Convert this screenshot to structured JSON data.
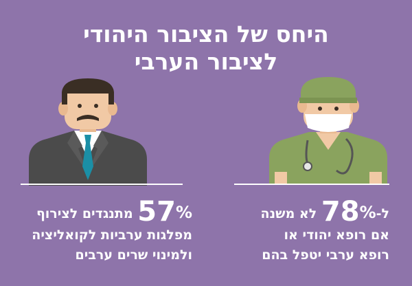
{
  "title": {
    "line1": "היחס של הציבור היהודי",
    "line2": "לציבור הערבי"
  },
  "left_stat": {
    "value": "57",
    "percent": "%",
    "line1_rest": "מתנגדים לצירוף",
    "line2": "מפלגות ערביות לקואליציה",
    "line3": "ולמינוי שרים ערבים"
  },
  "right_stat": {
    "prefix": "ל-",
    "value": "78",
    "percent": "%",
    "line1_rest": "לא משנה",
    "line2": "אם רופא יהודי או",
    "line3": "רופא ערבי יטפל בהם"
  },
  "icons": {
    "left": "politician-icon",
    "right": "doctor-icon"
  },
  "colors": {
    "background": "#8e74aa",
    "scrubs": "#8aa35e",
    "suit": "#4b4b4b",
    "skin": "#f1c9a5",
    "tie": "#1b8fa6"
  }
}
